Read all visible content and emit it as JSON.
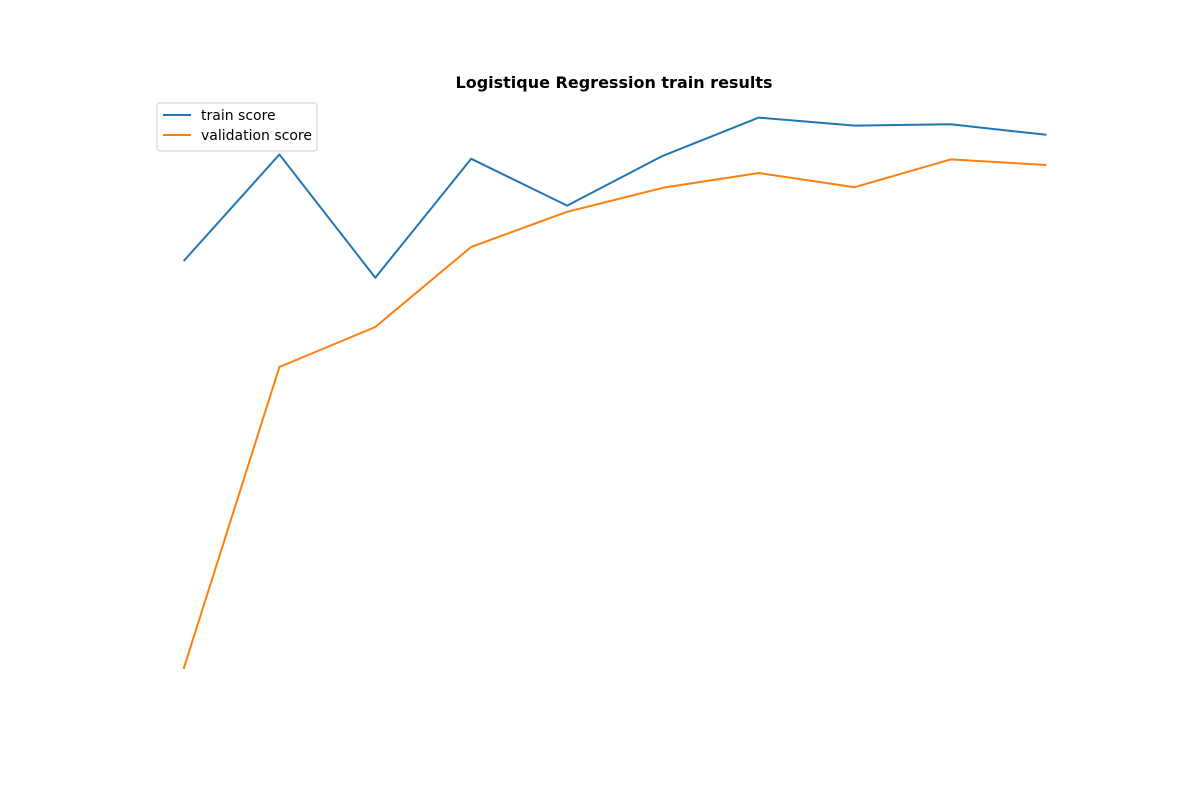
{
  "chart_data": {
    "type": "line",
    "title": "Logistique Regression train results",
    "xlabel": "",
    "ylabel": "",
    "x": [
      1,
      2,
      3,
      4,
      5,
      6,
      7,
      8,
      9,
      10
    ],
    "xlim": [
      0.65,
      10.35
    ],
    "ylim": [
      0.0,
      1.0
    ],
    "axes_visible": false,
    "grid": false,
    "legend_position": "upper-left",
    "series": [
      {
        "name": "train score",
        "color": "#1f77b4",
        "values": [
          0.732,
          0.905,
          0.705,
          0.898,
          0.822,
          0.903,
          0.965,
          0.952,
          0.954,
          0.937
        ]
      },
      {
        "name": "validation score",
        "color": "#ff7f0e",
        "values": [
          0.07,
          0.56,
          0.625,
          0.755,
          0.812,
          0.851,
          0.875,
          0.852,
          0.897,
          0.888
        ]
      }
    ]
  }
}
